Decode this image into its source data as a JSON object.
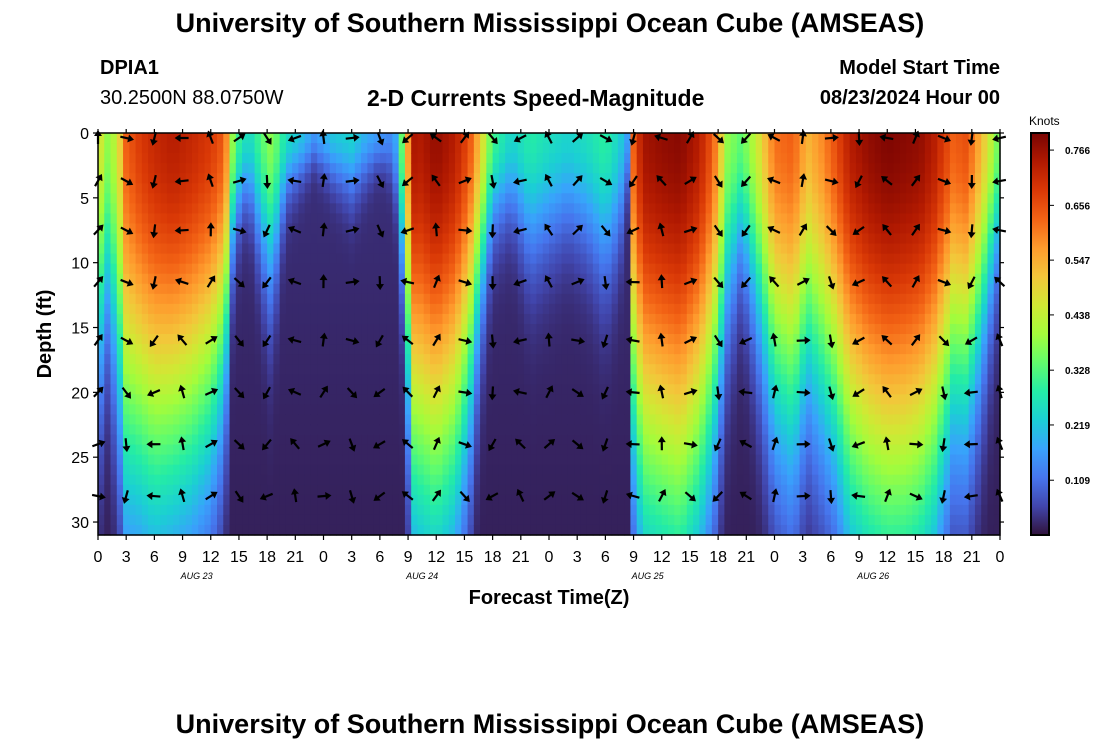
{
  "header": {
    "title": "University of Southern Mississippi Ocean Cube (AMSEAS)",
    "station": "DPIA1",
    "coords": "30.2500N  88.0750W",
    "subtitle": "2-D Currents Speed-Magnitude",
    "model_label": "Model Start Time",
    "model_time": "08/23/2024 Hour 00"
  },
  "footer": {
    "title": "University of Southern Mississippi Ocean Cube (AMSEAS)"
  },
  "colors": {
    "arrow": "#000000",
    "axis": "#000000",
    "colormap": [
      "#30123b",
      "#4145ab",
      "#4675ed",
      "#39a2fc",
      "#1bcfd4",
      "#24eca6",
      "#61fc6c",
      "#a4fc3b",
      "#d1e834",
      "#f3c63a",
      "#fe9b2d",
      "#f36315",
      "#d93806",
      "#b11901",
      "#7a0402"
    ]
  },
  "chart_data": {
    "type": "heatmap",
    "title": "2-D Currents Speed-Magnitude",
    "xlabel": "Forecast Time(Z)",
    "ylabel": "Depth (ft)",
    "xlim": [
      0,
      96
    ],
    "ylim": [
      31,
      0
    ],
    "x_ticks": [
      "0",
      "3",
      "6",
      "9",
      "12",
      "15",
      "18",
      "21",
      "0",
      "3",
      "6",
      "9",
      "12",
      "15",
      "18",
      "21",
      "0",
      "3",
      "6",
      "9",
      "12",
      "15",
      "18",
      "21",
      "0",
      "3",
      "6",
      "9",
      "12",
      "15",
      "18",
      "21",
      "0"
    ],
    "date_labels": [
      {
        "label": "AUG 23",
        "hour": 10.5
      },
      {
        "label": "AUG 24",
        "hour": 34.5
      },
      {
        "label": "AUG 25",
        "hour": 58.5
      },
      {
        "label": "AUG 26",
        "hour": 82.5
      }
    ],
    "y_ticks": [
      0,
      5,
      10,
      15,
      20,
      25,
      30
    ],
    "colorbar": {
      "units": "Knots",
      "ticks": [
        "0.766",
        "0.656",
        "0.547",
        "0.438",
        "0.328",
        "0.219",
        "0.109"
      ],
      "min": 0.0,
      "max": 0.8
    },
    "arrow_depths": [
      0,
      3.7,
      7.5,
      11.5,
      16,
      20,
      24,
      28
    ],
    "speed_profile_hours": [
      0,
      1,
      2,
      3,
      4.5,
      6,
      8,
      10,
      12,
      13.5,
      14.5,
      16,
      17.5,
      18.5,
      20,
      21.5,
      23,
      25,
      27,
      28.5,
      30,
      31.5,
      32.5,
      33.5,
      34,
      36,
      38,
      39.5,
      40.5,
      42,
      44,
      46,
      48,
      50,
      52,
      54,
      55.5,
      56.5,
      57,
      58,
      60,
      62,
      64,
      65.5,
      67,
      68.5,
      70,
      72,
      74,
      75.5,
      77,
      78.5,
      80,
      82,
      84,
      86,
      87.5,
      89,
      91,
      92.5,
      94,
      95.5,
      96
    ],
    "surface_speed_knots": [
      0.45,
      0.35,
      0.4,
      0.6,
      0.65,
      0.68,
      0.7,
      0.68,
      0.65,
      0.6,
      0.3,
      0.2,
      0.3,
      0.35,
      0.22,
      0.18,
      0.12,
      0.18,
      0.2,
      0.15,
      0.12,
      0.1,
      0.35,
      0.72,
      0.7,
      0.74,
      0.7,
      0.62,
      0.5,
      0.28,
      0.2,
      0.25,
      0.22,
      0.2,
      0.22,
      0.26,
      0.2,
      0.12,
      0.6,
      0.72,
      0.74,
      0.75,
      0.7,
      0.6,
      0.35,
      0.3,
      0.4,
      0.58,
      0.6,
      0.5,
      0.55,
      0.62,
      0.7,
      0.74,
      0.76,
      0.75,
      0.74,
      0.7,
      0.6,
      0.62,
      0.5,
      0.35,
      0.3
    ],
    "penetration_depth_ft": [
      16,
      12,
      16,
      23,
      23,
      24,
      23,
      22,
      20,
      16,
      6,
      4,
      8,
      10,
      4,
      3,
      2,
      3,
      4,
      3,
      2,
      3,
      10,
      23,
      24,
      25,
      23,
      18,
      12,
      6,
      5,
      8,
      7,
      6,
      7,
      9,
      7,
      3,
      20,
      25,
      26,
      27,
      24,
      20,
      12,
      8,
      12,
      18,
      20,
      16,
      18,
      20,
      24,
      26,
      27,
      27,
      26,
      24,
      18,
      18,
      14,
      9,
      8
    ]
  }
}
